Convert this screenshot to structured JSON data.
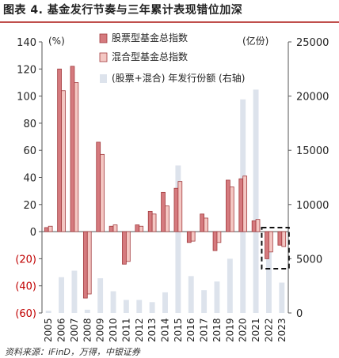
{
  "header": {
    "title": "图表 4. 基金发行节奏与三年累计表现错位加深"
  },
  "source": "资料来源：iFinD，万得，中银证券",
  "chart_data": {
    "type": "bar",
    "categories": [
      "2005",
      "2006",
      "2007",
      "2008",
      "2009",
      "2010",
      "2011",
      "2012",
      "2013",
      "2014",
      "2015",
      "2016",
      "2017",
      "2018",
      "2019",
      "2020",
      "2021",
      "2022",
      "2023"
    ],
    "left_axis": {
      "unit": "(%)",
      "ylim": [
        -60,
        140
      ],
      "ticks": [
        140,
        120,
        100,
        80,
        60,
        40,
        20,
        0,
        -20,
        -40,
        -60
      ],
      "tick_labels": [
        "140",
        "120",
        "100",
        "80",
        "60",
        "40",
        "20",
        "0",
        "(20)",
        "(40)",
        "(60)"
      ]
    },
    "right_axis": {
      "unit": "(亿份)",
      "ylim": [
        0,
        25000
      ],
      "ticks": [
        25000,
        20000,
        15000,
        10000,
        5000,
        0
      ],
      "tick_labels": [
        "25000",
        "20000",
        "15000",
        "10000",
        "5000",
        "0"
      ]
    },
    "series": [
      {
        "name": "股票型基金总指数",
        "axis": "left",
        "color": "#d57a7e",
        "values": [
          3,
          120,
          122,
          -49,
          66,
          4,
          -24,
          5,
          15,
          29,
          32,
          -8,
          13,
          -14,
          38,
          39,
          8,
          -20,
          -10
        ]
      },
      {
        "name": "混合型基金总指数",
        "axis": "left",
        "color": "#f4c7c3",
        "values": [
          4,
          104,
          110,
          -46,
          57,
          5,
          -22,
          4,
          13,
          19,
          37,
          -7,
          10,
          -8,
          33,
          41,
          9,
          -15,
          -11
        ]
      },
      {
        "name": "(股票+混合) 年发行份额 (右轴)",
        "axis": "right",
        "color": "#dde3ec",
        "values": [
          200,
          3300,
          3900,
          300,
          3200,
          2000,
          1200,
          1200,
          1000,
          1900,
          13600,
          3400,
          2100,
          2900,
          5000,
          19700,
          20600,
          5800,
          2800
        ]
      }
    ],
    "annotation": "dashed box highlighting 2022-2023"
  }
}
